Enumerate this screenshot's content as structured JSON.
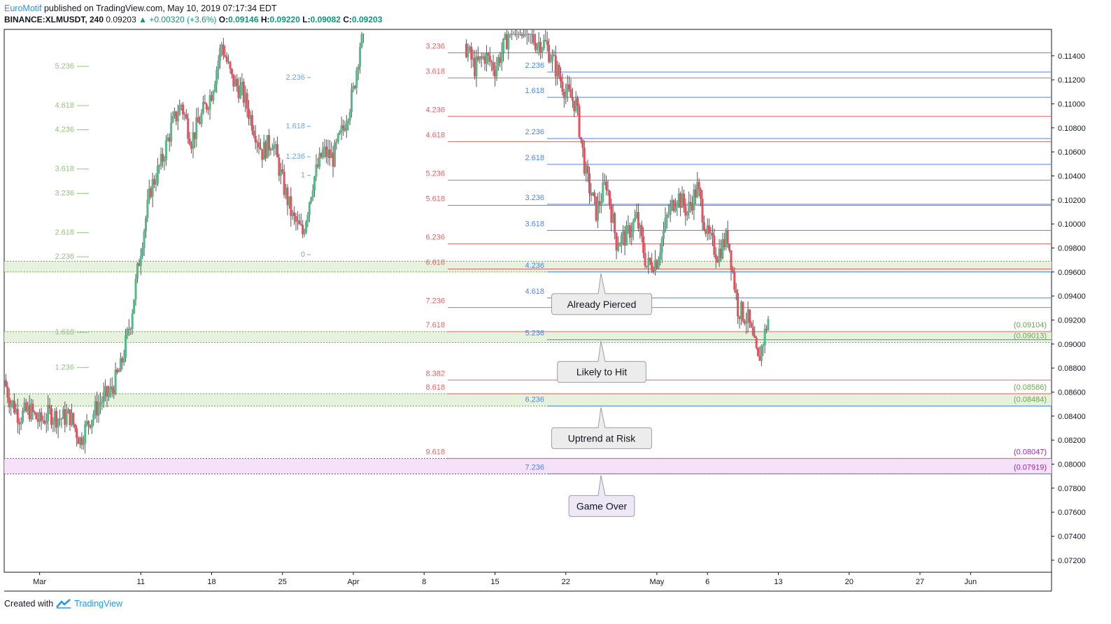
{
  "header": {
    "author": "EuroMotif",
    "published": "published on TradingView.com, May 10, 2019 07:17:34 EDT",
    "symbol": "BINANCE:XLMUSDT, 240",
    "last": "0.09203",
    "change": "+0.00320 (+3.6%)",
    "o_label": "O:",
    "o": "0.09146",
    "h_label": "H:",
    "h": "0.09220",
    "l_label": "L:",
    "l": "0.09082",
    "c_label": "C:",
    "c": "0.09203"
  },
  "footer": {
    "created": "Created with",
    "brand": "TradingView"
  },
  "colors": {
    "up": "#53b987",
    "down": "#eb4d5c",
    "fib_red": "#e06666",
    "fib_blue": "#4a86e8",
    "green_zone": "#e3f0d8",
    "purple_zone": "#f3dcf7",
    "purple": "#9c27b0"
  },
  "chart_data": {
    "type": "candlestick",
    "symbol": "BINANCE:XLMUSDT",
    "interval": "240",
    "ylim": [
      0.071,
      0.1162
    ],
    "y_ticks": [
      "0.11400",
      "0.11200",
      "0.11000",
      "0.10800",
      "0.10600",
      "0.10400",
      "0.10200",
      "0.10000",
      "0.09800",
      "0.09600",
      "0.09400",
      "0.09200",
      "0.09000",
      "0.08800",
      "0.08600",
      "0.08400",
      "0.08200",
      "0.08000",
      "0.07800",
      "0.07600",
      "0.07400",
      "0.07200"
    ],
    "x_ticks": [
      "Mar",
      "11",
      "18",
      "25",
      "Apr",
      "8",
      "15",
      "22",
      "May",
      "6",
      "13",
      "20",
      "27",
      "Jun"
    ],
    "x_tick_days": [
      0,
      10,
      17,
      24,
      31,
      38,
      45,
      52,
      61,
      66,
      73,
      80,
      87,
      92
    ],
    "x_visible_days": [
      -3.5,
      100
    ],
    "price_path": [
      [
        -3.5,
        0.087
      ],
      [
        -3,
        0.0855
      ],
      [
        -2,
        0.084
      ],
      [
        -1,
        0.0845
      ],
      [
        0,
        0.0835
      ],
      [
        1,
        0.0842
      ],
      [
        2,
        0.0838
      ],
      [
        3,
        0.084
      ],
      [
        4,
        0.082
      ],
      [
        5,
        0.0838
      ],
      [
        6,
        0.0852
      ],
      [
        7,
        0.086
      ],
      [
        8,
        0.088
      ],
      [
        9,
        0.092
      ],
      [
        10,
        0.098
      ],
      [
        11,
        0.103
      ],
      [
        12,
        0.105
      ],
      [
        13,
        0.108
      ],
      [
        14,
        0.11
      ],
      [
        15,
        0.107
      ],
      [
        16,
        0.109
      ],
      [
        17,
        0.111
      ],
      [
        18,
        0.115
      ],
      [
        19,
        0.112
      ],
      [
        20,
        0.111
      ],
      [
        21,
        0.1085
      ],
      [
        22,
        0.106
      ],
      [
        23,
        0.107
      ],
      [
        24,
        0.1035
      ],
      [
        25,
        0.1005
      ],
      [
        26,
        0.0992
      ],
      [
        27,
        0.1035
      ],
      [
        28,
        0.106
      ],
      [
        29,
        0.1055
      ],
      [
        30,
        0.108
      ],
      [
        31,
        0.111
      ],
      [
        32,
        0.117
      ]
    ],
    "price_path_2": [
      [
        42,
        0.115
      ],
      [
        43,
        0.113
      ],
      [
        44,
        0.114
      ],
      [
        45,
        0.113
      ],
      [
        46,
        0.115
      ],
      [
        47,
        0.1175
      ],
      [
        48,
        0.116
      ],
      [
        49,
        0.1152
      ],
      [
        50,
        0.115
      ],
      [
        51,
        0.113
      ],
      [
        52,
        0.111
      ],
      [
        53,
        0.11
      ],
      [
        54,
        0.104
      ],
      [
        55,
        0.101
      ],
      [
        56,
        0.1035
      ],
      [
        57,
        0.0985
      ],
      [
        58,
        0.099
      ],
      [
        59,
        0.1005
      ],
      [
        60,
        0.0965
      ],
      [
        61,
        0.097
      ],
      [
        62,
        0.1005
      ],
      [
        63,
        0.1025
      ],
      [
        64,
        0.101
      ],
      [
        65,
        0.103
      ],
      [
        66,
        0.099
      ],
      [
        67,
        0.0975
      ],
      [
        68,
        0.099
      ],
      [
        69,
        0.093
      ],
      [
        70,
        0.092
      ],
      [
        71,
        0.0885
      ],
      [
        72,
        0.0921
      ]
    ],
    "fib_red": [
      {
        "label": "3.236",
        "value": 0.11425
      },
      {
        "label": "3.618",
        "value": 0.11216
      },
      {
        "label": "4.236",
        "value": 0.10896
      },
      {
        "label": "4.618",
        "value": 0.10686
      },
      {
        "label": "5.236",
        "value": 0.10364
      },
      {
        "label": "5.618",
        "value": 0.10155
      },
      {
        "label": "6.236",
        "value": 0.09834
      },
      {
        "label": "6.618",
        "value": 0.09625
      },
      {
        "label": "7.236",
        "value": 0.09304
      },
      {
        "label": "7.618",
        "value": 0.09104
      },
      {
        "label": "8.382",
        "value": 0.087
      },
      {
        "label": "8.618",
        "value": 0.08586
      },
      {
        "label": "9.618",
        "value": 0.08047
      }
    ],
    "fib_blue": [
      {
        "label": "2.236",
        "value": 0.11265
      },
      {
        "label": "1.618",
        "value": 0.11054
      },
      {
        "label": "2.236",
        "value": 0.10711
      },
      {
        "label": "2.618",
        "value": 0.10496
      },
      {
        "label": "3.236",
        "value": 0.10164
      },
      {
        "label": "3.618",
        "value": 0.09946
      },
      {
        "label": "4.236",
        "value": 0.096
      },
      {
        "label": "4.618",
        "value": 0.09384
      },
      {
        "label": "5.236",
        "value": 0.09036
      },
      {
        "label": "6.236",
        "value": 0.08484
      },
      {
        "label": "7.236",
        "value": 0.07919
      }
    ],
    "fib_green": [
      {
        "label": "5.236",
        "value": 0.11318
      },
      {
        "label": "4.618",
        "value": 0.10991
      },
      {
        "label": "4.236",
        "value": 0.1079
      },
      {
        "label": "3.618",
        "value": 0.10463
      },
      {
        "label": "3.236",
        "value": 0.10261
      },
      {
        "label": "2.618",
        "value": 0.09933
      },
      {
        "label": "2.236",
        "value": 0.09732
      },
      {
        "label": "1.618",
        "value": 0.09104
      },
      {
        "label": "1.236",
        "value": 0.0881
      }
    ],
    "fib_small_blue": [
      {
        "label": "2.236",
        "value": 0.11225
      },
      {
        "label": "1.618",
        "value": 0.10818
      },
      {
        "label": "1.236",
        "value": 0.10565
      },
      {
        "label": "1",
        "value": 0.1041
      },
      {
        "label": "0",
        "value": 0.0975
      }
    ],
    "zones": [
      {
        "kind": "green",
        "top": 0.0969,
        "bottom": 0.096
      },
      {
        "kind": "green",
        "top": 0.09104,
        "bottom": 0.09013
      },
      {
        "kind": "green",
        "top": 0.08586,
        "bottom": 0.08484
      },
      {
        "kind": "purple",
        "top": 0.08047,
        "bottom": 0.07919
      }
    ],
    "right_labels": [
      "(0.09104)",
      "(0.09013)",
      "(0.08586)",
      "(0.08484)",
      "(0.08047)",
      "(0.07919)"
    ],
    "callouts": [
      {
        "text": "Already Pierced",
        "price": 0.096
      },
      {
        "text": "Likely to Hit",
        "price": 0.09036
      },
      {
        "text": "Uptrend at Risk",
        "price": 0.08484
      },
      {
        "text": "Game Over",
        "price": 0.07919
      }
    ]
  }
}
